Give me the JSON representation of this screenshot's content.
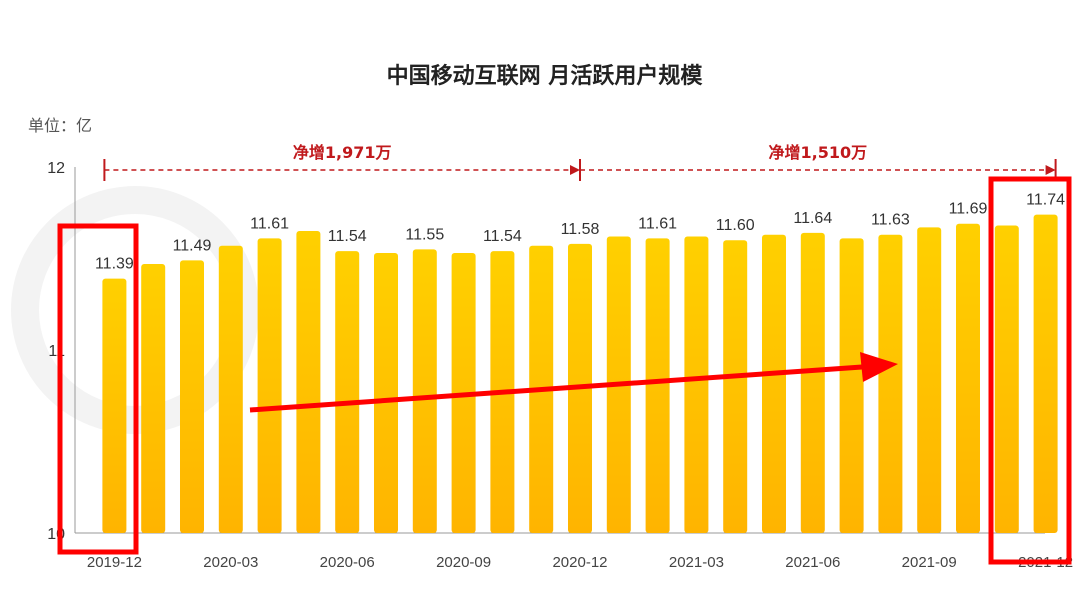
{
  "chart_data": {
    "type": "bar",
    "title": "中国移动互联网 月活跃用户规模",
    "unit_label": "单位：亿",
    "ylim": [
      10,
      12
    ],
    "yticks": [
      "10",
      "11",
      "12"
    ],
    "categories": [
      "2019-12",
      "2020-01",
      "2020-02",
      "2020-03",
      "2020-04",
      "2020-05",
      "2020-06",
      "2020-07",
      "2020-08",
      "2020-09",
      "2020-10",
      "2020-11",
      "2020-12",
      "2021-01",
      "2021-02",
      "2021-03",
      "2021-04",
      "2021-05",
      "2021-06",
      "2021-07",
      "2021-08",
      "2021-09",
      "2021-10",
      "2021-11",
      "2021-12"
    ],
    "values": [
      11.39,
      11.47,
      11.49,
      11.57,
      11.61,
      11.65,
      11.54,
      11.53,
      11.55,
      11.53,
      11.54,
      11.57,
      11.58,
      11.62,
      11.61,
      11.62,
      11.6,
      11.63,
      11.64,
      11.61,
      11.63,
      11.67,
      11.69,
      11.68,
      11.74
    ],
    "data_labels": [
      {
        "index": 0,
        "text": "11.39"
      },
      {
        "index": 2,
        "text": "11.49"
      },
      {
        "index": 4,
        "text": "11.61"
      },
      {
        "index": 6,
        "text": "11.54"
      },
      {
        "index": 8,
        "text": "11.55"
      },
      {
        "index": 10,
        "text": "11.54"
      },
      {
        "index": 12,
        "text": "11.58"
      },
      {
        "index": 14,
        "text": "11.61"
      },
      {
        "index": 16,
        "text": "11.60"
      },
      {
        "index": 18,
        "text": "11.64"
      },
      {
        "index": 20,
        "text": "11.63"
      },
      {
        "index": 22,
        "text": "11.69"
      },
      {
        "index": 24,
        "text": "11.74"
      }
    ],
    "xtick_labels": [
      {
        "index": 0,
        "text": "2019-12"
      },
      {
        "index": 3,
        "text": "2020-03"
      },
      {
        "index": 6,
        "text": "2020-06"
      },
      {
        "index": 9,
        "text": "2020-09"
      },
      {
        "index": 12,
        "text": "2020-12"
      },
      {
        "index": 15,
        "text": "2021-03"
      },
      {
        "index": 18,
        "text": "2021-06"
      },
      {
        "index": 21,
        "text": "2021-09"
      },
      {
        "index": 24,
        "text": "2021-12"
      }
    ],
    "annotations": [
      {
        "text": "净增1,971万",
        "from_index": 0,
        "to_index": 12
      },
      {
        "text": "净增1,510万",
        "from_index": 12,
        "to_index": 24
      }
    ],
    "highlight_indices": [
      0,
      24
    ],
    "colors": {
      "bar_top": "#ffd000",
      "bar_bottom": "#ffb400",
      "annotation": "#c0191c",
      "highlight": "#ff0000",
      "arrow": "#ff0000"
    },
    "grid": false
  }
}
